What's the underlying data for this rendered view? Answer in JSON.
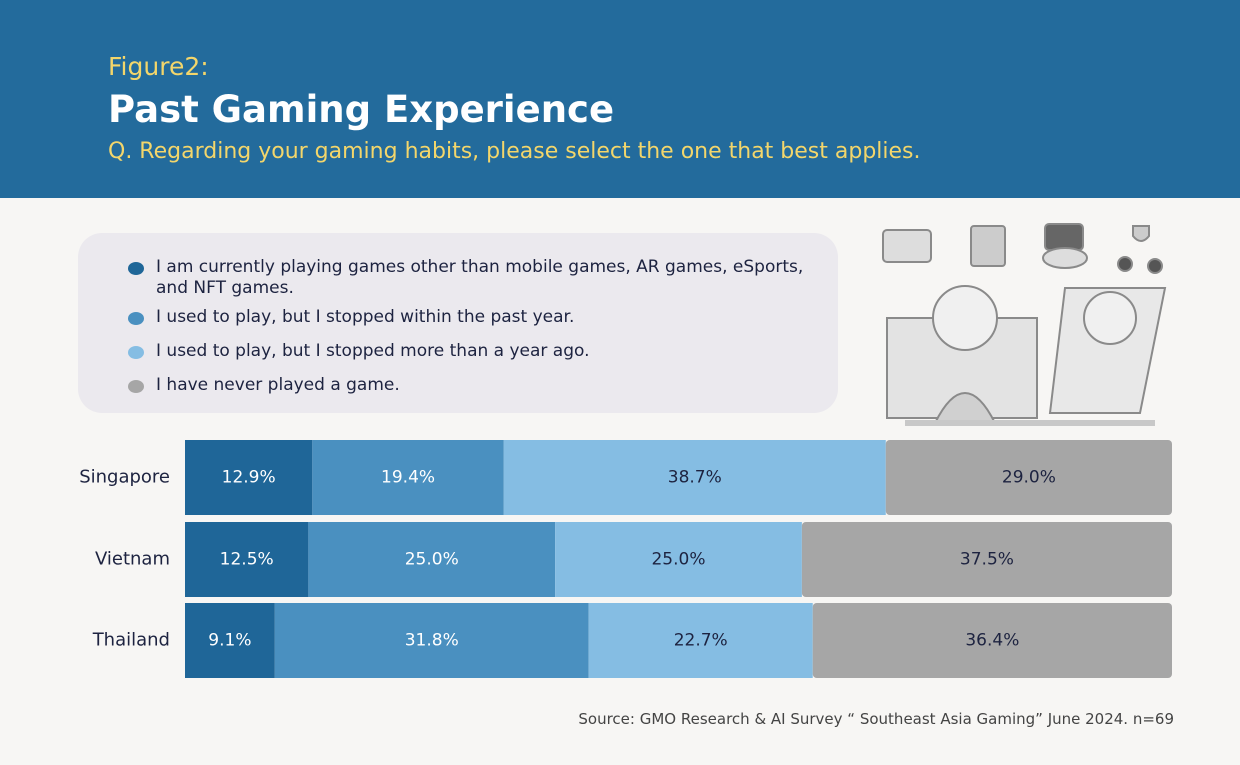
{
  "header": {
    "figure": "Figure2:",
    "title": "Past Gaming Experience",
    "question": "Q. Regarding your gaming habits, please select the one that best applies."
  },
  "chart_data": {
    "type": "stacked-bar-horizontal",
    "categories": [
      "Singapore",
      "Vietnam",
      "Thailand"
    ],
    "xlim": [
      0,
      100
    ],
    "series": [
      {
        "name": "I am currently playing games other than mobile games, AR games, eSports, and NFT games.",
        "color": "#1f6698",
        "label_color": "#ffffff",
        "values": [
          12.9,
          12.5,
          9.1
        ],
        "value_labels": [
          "12.9%",
          "12.5%",
          "9.1%"
        ]
      },
      {
        "name": "I used to play, but I stopped within the past year.",
        "color": "#4a90c0",
        "label_color": "#ffffff",
        "values": [
          19.4,
          25.0,
          31.8
        ],
        "value_labels": [
          "19.4%",
          "25.0%",
          "31.8%"
        ]
      },
      {
        "name": "I used to play, but I stopped more than a year ago.",
        "color": "#85bde3",
        "label_color": "#1d2340",
        "values": [
          38.7,
          25.0,
          22.7
        ],
        "value_labels": [
          "38.7%",
          "25.0%",
          "22.7%"
        ]
      },
      {
        "name": "I have never played a game.",
        "color": "#a6a6a6",
        "label_color": "#1d2340",
        "values": [
          29.0,
          37.5,
          36.4
        ],
        "value_labels": [
          "29.0%",
          "37.5%",
          "36.4%"
        ]
      }
    ],
    "source": "Source: GMO Research & AI Survey “ Southeast Asia Gaming” June 2024. n=69"
  }
}
